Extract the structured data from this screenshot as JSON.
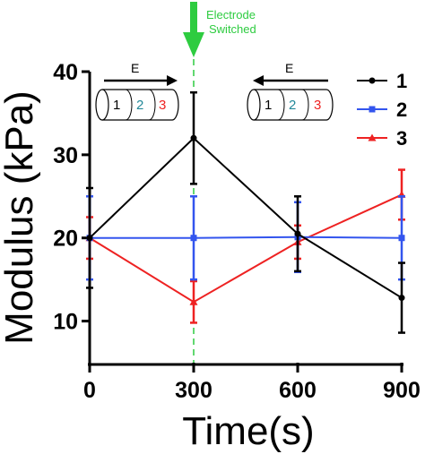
{
  "chart_data": {
    "type": "line",
    "xlabel": "Time(s)",
    "ylabel": "Modulus (kPa)",
    "x": [
      0,
      300,
      600,
      900
    ],
    "xticks": [
      "0",
      "300",
      "600",
      "900"
    ],
    "yticks": [
      "10",
      "20",
      "30",
      "40"
    ],
    "xlim": [
      0,
      900
    ],
    "ylim": [
      5,
      40
    ],
    "grid": false,
    "legend_position": "top-right",
    "series": [
      {
        "name": "1",
        "color": "#000000",
        "marker": "circle",
        "values": [
          20,
          32,
          20.5,
          12.8
        ],
        "errors": [
          6,
          5.5,
          4.5,
          4.2
        ]
      },
      {
        "name": "2",
        "color": "#3355ee",
        "marker": "square",
        "values": [
          20,
          20,
          20.1,
          20
        ],
        "errors": [
          5,
          5,
          4.2,
          5
        ]
      },
      {
        "name": "3",
        "color": "#ee2222",
        "marker": "triangle",
        "values": [
          20,
          12.3,
          19.5,
          25.2
        ],
        "errors": [
          2.5,
          2.5,
          2.0,
          3
        ]
      }
    ],
    "annotation": {
      "line1": "Electrode",
      "line2": "Switched",
      "x": 300,
      "color": "#2ecc40"
    },
    "inset": {
      "e_label": "E",
      "numbers": [
        "1",
        "2",
        "3"
      ],
      "number_colors": [
        "#000000",
        "#228899",
        "#ee2222"
      ]
    }
  }
}
